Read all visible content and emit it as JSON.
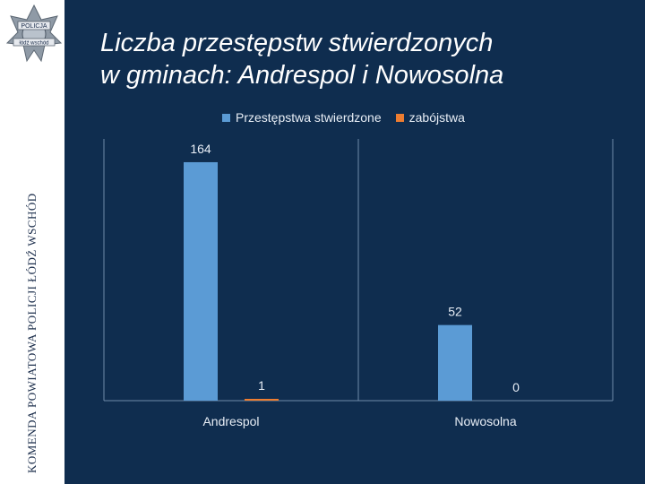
{
  "sidebar": {
    "vertical_text": "KOMENDA POWIATOWA POLICJI ŁÓDŹ WSCHÓD",
    "logo": {
      "top_text": "POLICJA",
      "bottom_text": "łódź wschód",
      "icon": "police-star-badge"
    }
  },
  "colors": {
    "background": "#0f2d4f",
    "series1": "#5b9bd5",
    "series2": "#ed7d31",
    "sidebar": "#ffffff"
  },
  "chart_data": {
    "type": "bar",
    "title": [
      "Liczba przestępstw stwierdzonych",
      "w gminach: Andrespol i Nowosolna"
    ],
    "categories": [
      "Andrespol",
      "Nowosolna"
    ],
    "series": [
      {
        "name": "Przestępstwa stwierdzone",
        "values": [
          164,
          52
        ],
        "data_labels": [
          "164",
          "52"
        ]
      },
      {
        "name": "zabójstwa",
        "values": [
          1,
          0
        ],
        "data_labels": [
          "1",
          "0"
        ]
      }
    ],
    "ylim": [
      0,
      180
    ],
    "grid": false,
    "legend": "top"
  }
}
